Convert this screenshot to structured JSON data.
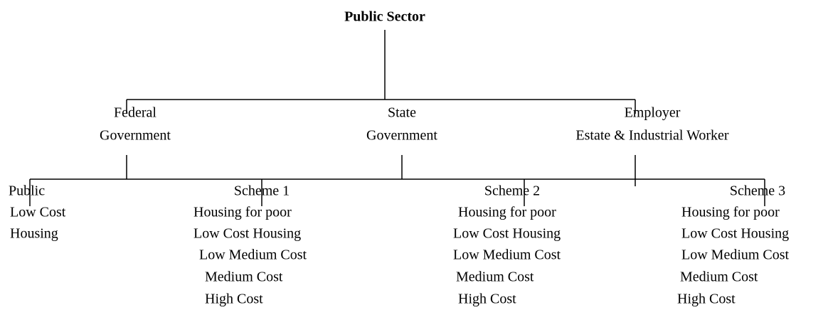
{
  "title": "Public Sector",
  "level1": [
    {
      "lines": [
        "Federal",
        "Government"
      ]
    },
    {
      "lines": [
        "State",
        "Government"
      ]
    },
    {
      "lines": [
        "Employer",
        "Estate & Industrial Worker"
      ]
    }
  ],
  "level2": [
    {
      "heading": "Public",
      "items": [
        "Low Cost",
        "Housing"
      ]
    },
    {
      "heading": "Scheme 1",
      "items": [
        "Housing for poor",
        "Low Cost Housing",
        "Low Medium Cost",
        "Medium Cost",
        "High Cost"
      ]
    },
    {
      "heading": "Scheme 2",
      "items": [
        "Housing for poor",
        "Low Cost Housing",
        "Low Medium Cost",
        "Medium Cost",
        "High Cost"
      ]
    },
    {
      "heading": "Scheme 3",
      "items": [
        "Housing for poor",
        "Low Cost Housing",
        "Low Medium Cost",
        "Medium Cost",
        "High Cost"
      ]
    }
  ]
}
